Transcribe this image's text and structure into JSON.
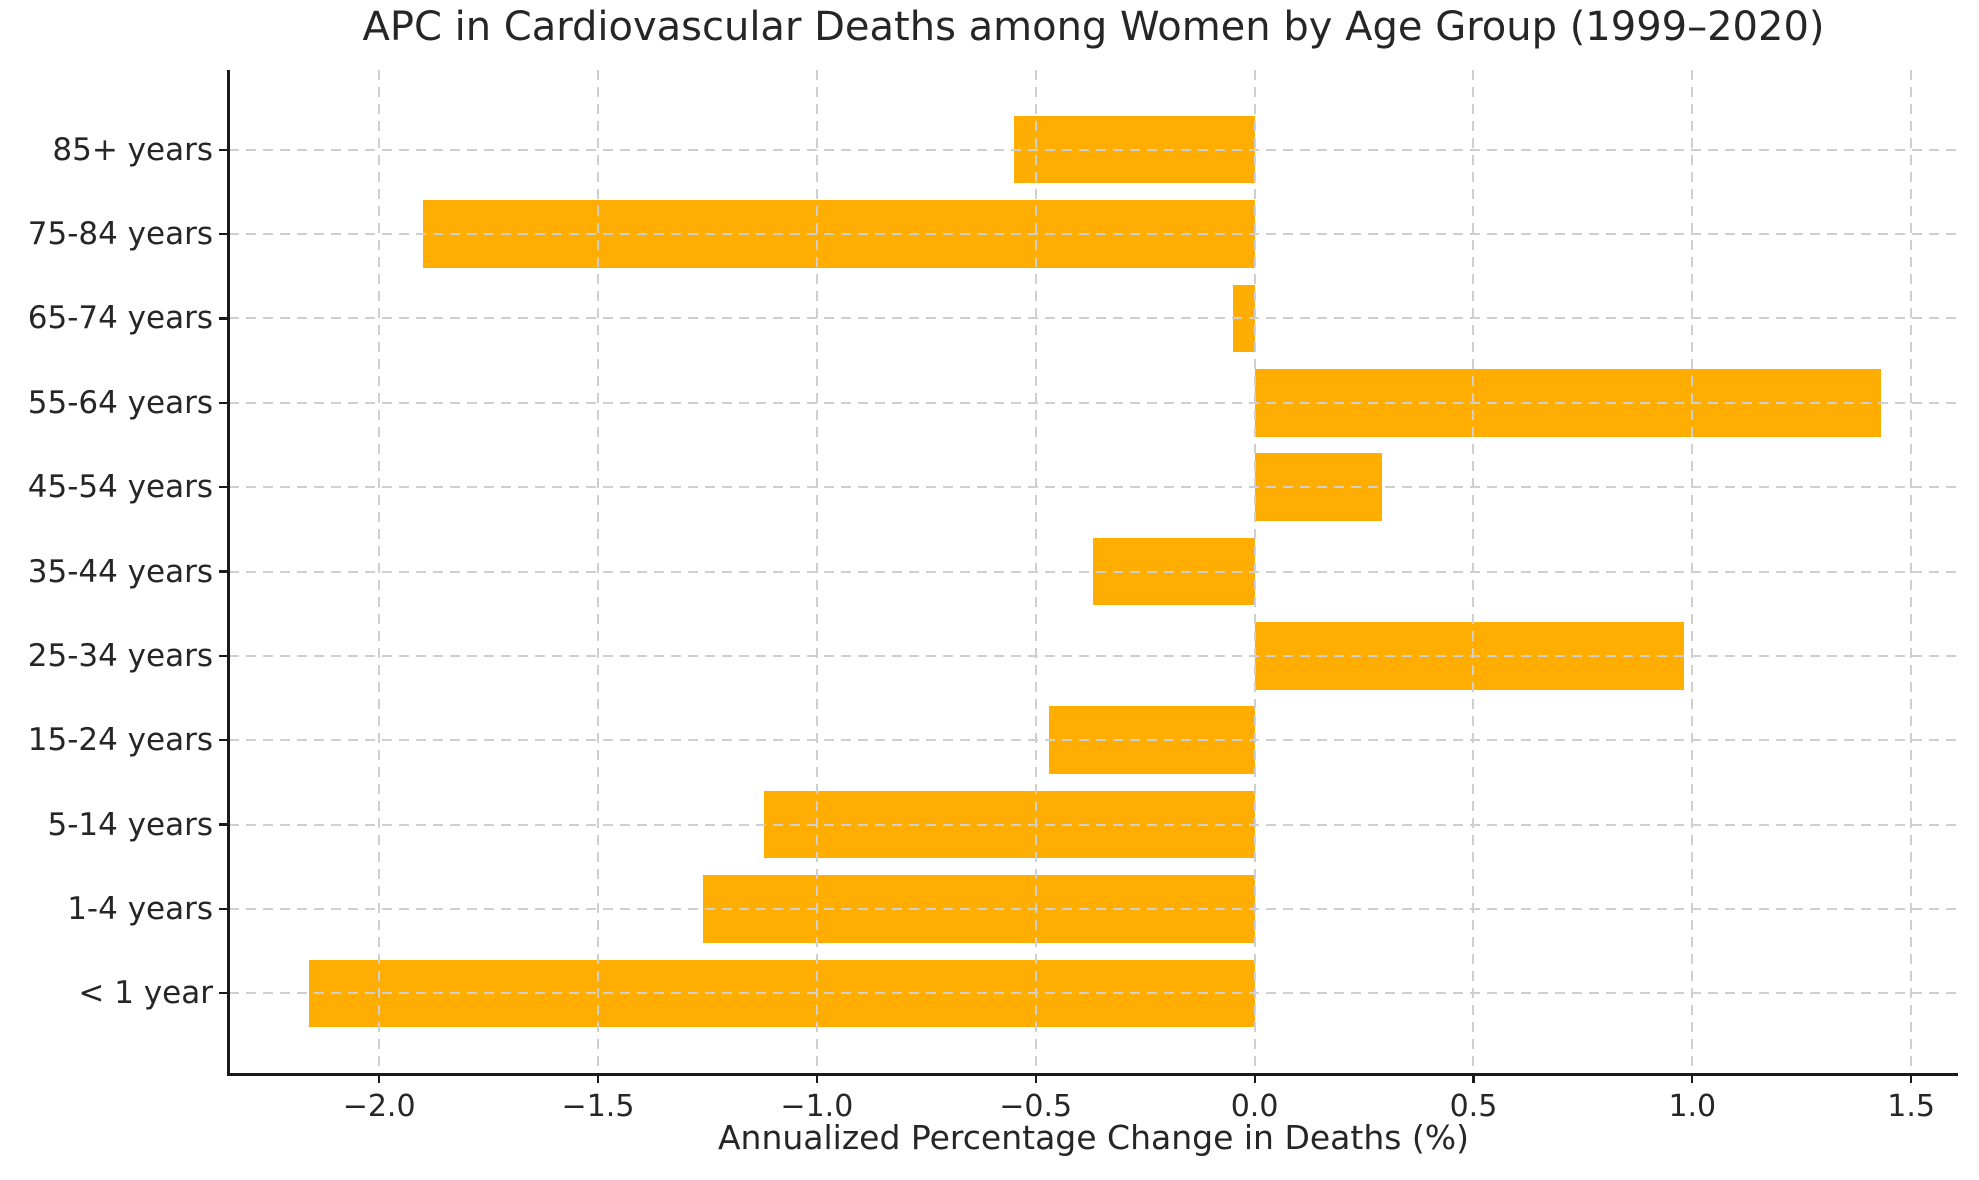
{
  "figure": {
    "background_color": "#ffffff"
  },
  "chart_data": {
    "type": "bar",
    "orientation": "horizontal",
    "title": "APC in Cardiovascular Deaths among Women by Age Group (1999–2020)",
    "xlabel": "Annualized Percentage Change in Deaths (%)",
    "ylabel": "",
    "categories": [
      "85+ years",
      "75-84 years",
      "65-74 years",
      "55-64 years",
      "45-54 years",
      "35-44 years",
      "25-34 years",
      "15-24 years",
      "5-14 years",
      "1-4 years",
      "< 1 year"
    ],
    "values": [
      -0.55,
      -1.9,
      -0.05,
      1.43,
      0.29,
      -0.37,
      0.98,
      -0.47,
      -1.12,
      -1.26,
      -2.16
    ],
    "xticks": [
      -2.0,
      -1.5,
      -1.0,
      -0.5,
      0.0,
      0.5,
      1.0,
      1.5
    ],
    "xtick_labels": [
      "−2.0",
      "−1.5",
      "−1.0",
      "−0.5",
      "0.0",
      "0.5",
      "1.0",
      "1.5"
    ],
    "xlim": [
      -2.343,
      1.607
    ],
    "grid": true,
    "grid_style": "dashed",
    "legend_position": "none",
    "bar_color": "#FFAD00",
    "grid_color": "#cfcfcf",
    "axis_color": "#1a1a1a",
    "text_color": "#262626"
  }
}
